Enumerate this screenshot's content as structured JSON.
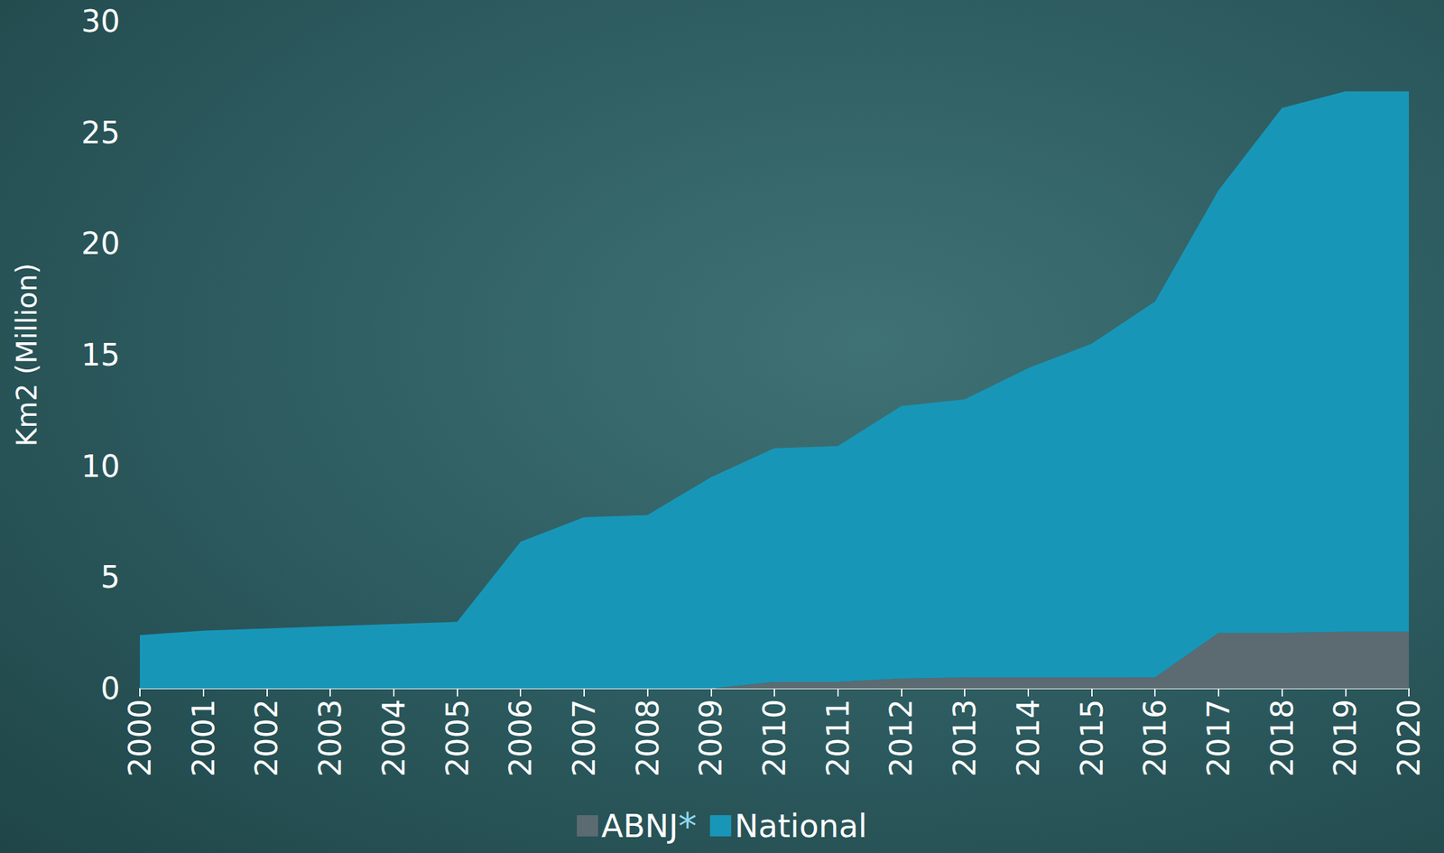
{
  "chart_data": {
    "type": "area",
    "stacked": true,
    "grid": false,
    "legend": "bottom",
    "y_label": "Km2 (Million)",
    "categories": [
      "2000",
      "2001",
      "2002",
      "2003",
      "2004",
      "2005",
      "2006",
      "2007",
      "2008",
      "2009",
      "2010",
      "2011",
      "2012",
      "2013",
      "2014",
      "2015",
      "2016",
      "2017",
      "2018",
      "2019",
      "2020"
    ],
    "series": [
      {
        "name": "ABNJ*",
        "color": "#5b6b71",
        "values": [
          0,
          0,
          0,
          0,
          0,
          0,
          0,
          0,
          0,
          0,
          0.3,
          0.3,
          0.45,
          0.5,
          0.5,
          0.5,
          0.5,
          2.5,
          2.5,
          2.55,
          2.55
        ]
      },
      {
        "name": "National",
        "color": "#1896b8",
        "values": [
          2.4,
          2.6,
          2.7,
          2.8,
          2.9,
          3.0,
          6.6,
          7.7,
          7.8,
          9.5,
          10.5,
          10.6,
          12.25,
          12.5,
          13.9,
          15.0,
          16.9,
          19.9,
          23.6,
          24.3,
          24.3
        ]
      }
    ],
    "ylim": [
      0,
      30
    ],
    "yticks": [
      0,
      5,
      10,
      15,
      20,
      25,
      30
    ]
  }
}
